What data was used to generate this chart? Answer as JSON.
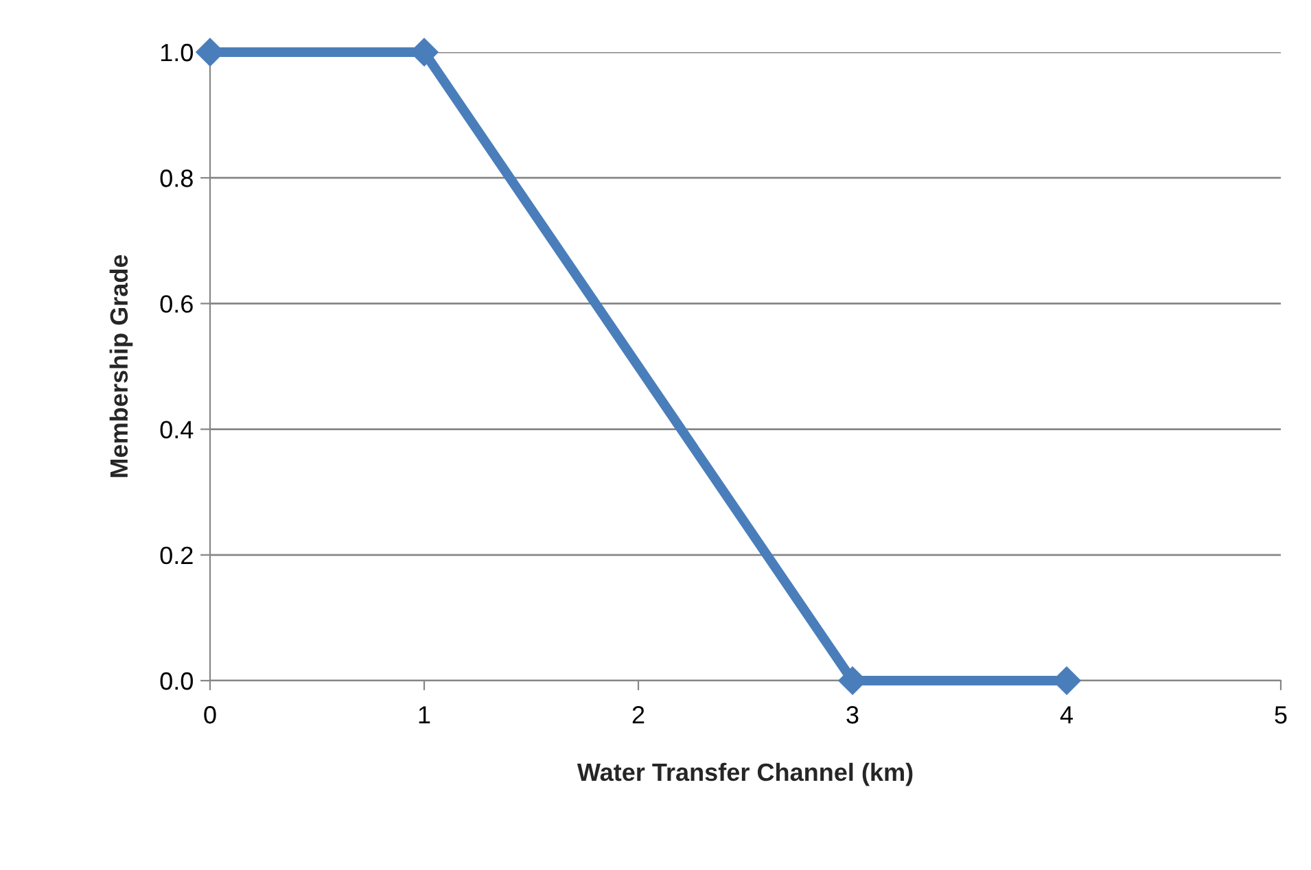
{
  "chart_data": {
    "type": "line",
    "xlabel": "Water Transfer Channel (km)",
    "ylabel": "Membership Grade",
    "x": [
      0,
      1,
      3,
      4
    ],
    "series": [
      {
        "color": "#4a7ebb",
        "values": [
          1.0,
          1.0,
          0.0,
          0.0
        ]
      }
    ],
    "xlim": [
      0,
      5
    ],
    "xticks": [
      0,
      1,
      2,
      3,
      4,
      5
    ],
    "ylim": [
      0,
      1.0
    ],
    "yticks": [
      {
        "value": 0,
        "label": "0.0"
      },
      {
        "value": 0.2,
        "label": "0.2"
      },
      {
        "value": 0.4,
        "label": "0.4"
      },
      {
        "value": 0.6,
        "label": "0.6"
      },
      {
        "value": 0.8,
        "label": "0.8"
      },
      {
        "value": 1.0,
        "label": "1.0"
      }
    ],
    "grid": "y",
    "marker": "diamond",
    "line_style": "solid",
    "legend": false
  }
}
